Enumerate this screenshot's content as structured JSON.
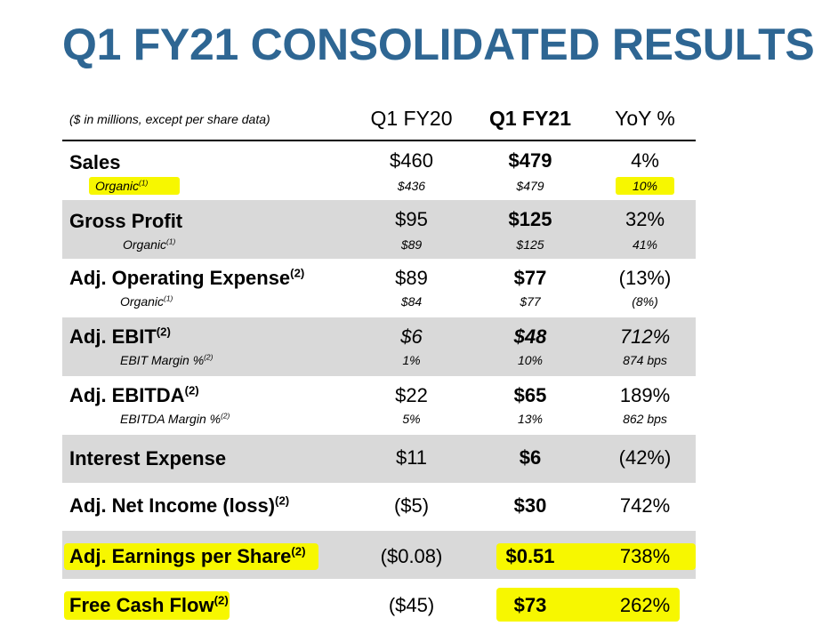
{
  "title": "Q1 FY21 CONSOLIDATED RESULTS",
  "colors": {
    "title": "#2e6693",
    "shade": "#d9d9d9",
    "highlight": "#f7f700"
  },
  "header": {
    "note": "($ in millions, except per share data)",
    "col_prior": "Q1 FY20",
    "col_current": "Q1 FY21",
    "col_yoy": "YoY %"
  },
  "rows": {
    "sales": {
      "label": "Sales",
      "prior": "$460",
      "current": "$479",
      "yoy": "4%",
      "sub_label": "Organic",
      "sub_sup": "(1)",
      "sub_prior": "$436",
      "sub_current": "$479",
      "sub_yoy": "10%"
    },
    "gross_profit": {
      "label": "Gross Profit",
      "prior": "$95",
      "current": "$125",
      "yoy": "32%",
      "sub_label": "Organic",
      "sub_sup": "(1)",
      "sub_prior": "$89",
      "sub_current": "$125",
      "sub_yoy": "41%"
    },
    "opex": {
      "label": "Adj. Operating Expense",
      "label_sup": "(2)",
      "prior": "$89",
      "current": "$77",
      "yoy": "(13%)",
      "sub_label": "Organic",
      "sub_sup": "(1)",
      "sub_prior": "$84",
      "sub_current": "$77",
      "sub_yoy": "(8%)"
    },
    "ebit": {
      "label": "Adj. EBIT",
      "label_sup": "(2)",
      "prior": "$6",
      "current": "$48",
      "yoy": "712%",
      "sub_label": "EBIT Margin %",
      "sub_sup": "(2)",
      "sub_prior": "1%",
      "sub_current": "10%",
      "sub_yoy": "874 bps"
    },
    "ebitda": {
      "label": "Adj. EBITDA",
      "label_sup": "(2)",
      "prior": "$22",
      "current": "$65",
      "yoy": "189%",
      "sub_label": "EBITDA Margin %",
      "sub_sup": "(2)",
      "sub_prior": "5%",
      "sub_current": "13%",
      "sub_yoy": "862 bps"
    },
    "interest": {
      "label": "Interest Expense",
      "prior": "$11",
      "current": "$6",
      "yoy": "(42%)"
    },
    "net_income": {
      "label": "Adj. Net Income (loss)",
      "label_sup": "(2)",
      "prior": "($5)",
      "current": "$30",
      "yoy": "742%"
    },
    "eps": {
      "label": "Adj. Earnings per Share",
      "label_sup": "(2)",
      "prior": "($0.08)",
      "current": "$0.51",
      "yoy": "738%"
    },
    "fcf": {
      "label": "Free Cash Flow",
      "label_sup": "(2)",
      "prior": "($45)",
      "current": "$73",
      "yoy": "262%"
    }
  }
}
